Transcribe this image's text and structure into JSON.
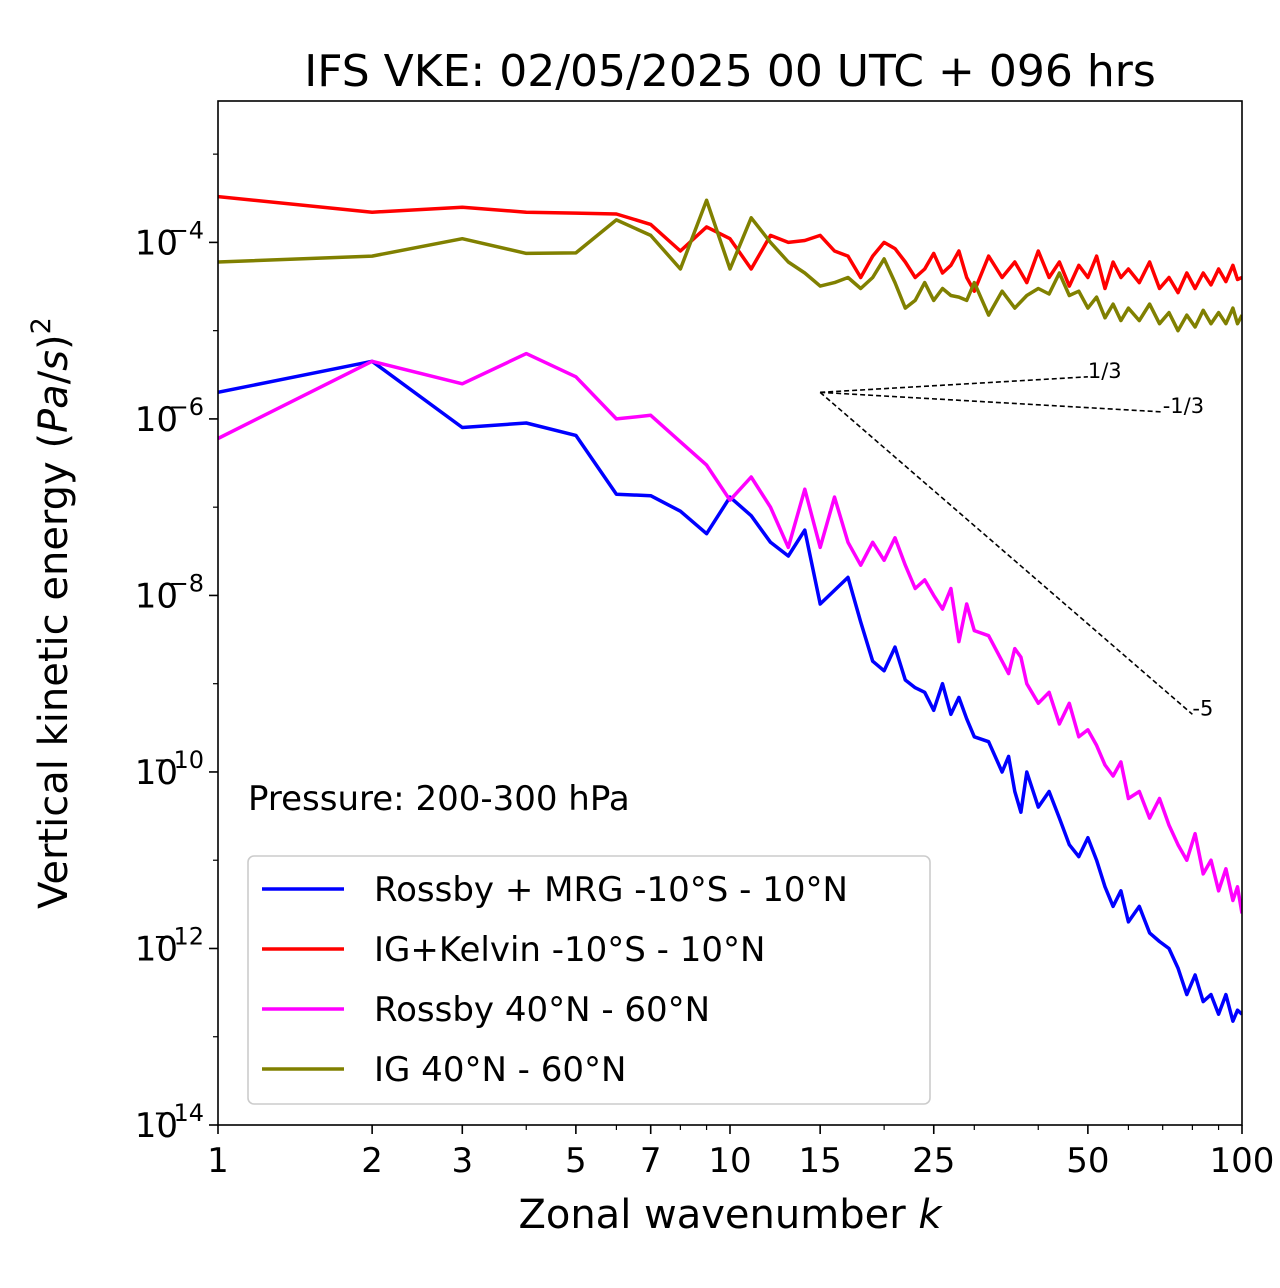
{
  "chart_data": {
    "type": "line",
    "title": "IFS VKE: 02/05/2025 00 UTC + 096 hrs",
    "xlabel": "Zonal wavenumber k",
    "ylabel": "Vertical kinetic energy (Pa/s)²",
    "xscale": "log",
    "yscale": "log",
    "xlim": [
      1,
      100
    ],
    "ylim": [
      1e-14,
      0.004
    ],
    "xticks": [
      1,
      2,
      3,
      5,
      7,
      10,
      15,
      25,
      50,
      100
    ],
    "xtick_labels": [
      "1",
      "2",
      "3",
      "5",
      "7",
      "10",
      "15",
      "25",
      "50",
      "100"
    ],
    "yticks": [
      {
        "value": 0.0001,
        "base": "10",
        "exp": "−4"
      },
      {
        "value": 1e-06,
        "base": "10",
        "exp": "−6"
      },
      {
        "value": 1e-08,
        "base": "10",
        "exp": "−8"
      },
      {
        "value": 1e-10,
        "base": "10",
        "exp": "−10"
      },
      {
        "value": 1e-12,
        "base": "10",
        "exp": "−12"
      },
      {
        "value": 1e-14,
        "base": "10",
        "exp": "−14"
      }
    ],
    "grid": false,
    "annotation": "Pressure: 200-300 hPa",
    "legend_position": "lower-left",
    "reference_slopes": [
      {
        "label": "1/3",
        "from": [
          15,
          2e-06
        ],
        "to": [
          50,
          3e-06
        ]
      },
      {
        "label": "-1/3",
        "from": [
          15,
          2e-06
        ],
        "to": [
          70,
          1.2e-06
        ]
      },
      {
        "label": "-5",
        "from": [
          15,
          2e-06
        ],
        "to": [
          80,
          4.5e-10
        ]
      }
    ],
    "series": [
      {
        "name": "Rossby + MRG -10°S - 10°N",
        "color": "#0000ff",
        "x": [
          1,
          2,
          3,
          4,
          5,
          6,
          7,
          8,
          9,
          10,
          11,
          12,
          13,
          14,
          15,
          17,
          18,
          19,
          20,
          21,
          22,
          23,
          24,
          25,
          26,
          27,
          28,
          29,
          30,
          32,
          34,
          35,
          36,
          37,
          38,
          40,
          42,
          44,
          46,
          48,
          50,
          52,
          54,
          56,
          58,
          60,
          63,
          66,
          69,
          72,
          75,
          78,
          81,
          84,
          87,
          90,
          93,
          96,
          98,
          100
        ],
        "y": [
          2e-06,
          4.5e-06,
          8e-07,
          9e-07,
          6.5e-07,
          1.4e-07,
          1.35e-07,
          9e-08,
          5e-08,
          1.3e-07,
          8e-08,
          4e-08,
          2.8e-08,
          5.5e-08,
          8e-09,
          1.6e-08,
          5e-09,
          1.8e-09,
          1.4e-09,
          2.6e-09,
          1.1e-09,
          9e-10,
          8e-10,
          5e-10,
          1e-09,
          4.5e-10,
          7e-10,
          4e-10,
          2.5e-10,
          2.2e-10,
          1e-10,
          1.5e-10,
          6e-11,
          3.5e-11,
          1e-10,
          4e-11,
          6e-11,
          3e-11,
          1.5e-11,
          1.1e-11,
          1.8e-11,
          1e-11,
          5e-12,
          3e-12,
          4.5e-12,
          2e-12,
          3e-12,
          1.5e-12,
          1.2e-12,
          1e-12,
          6e-13,
          3e-13,
          5e-13,
          2.5e-13,
          3e-13,
          1.8e-13,
          3e-13,
          1.5e-13,
          2e-13,
          1.8e-13
        ]
      },
      {
        "name": "IG+Kelvin -10°S - 10°N",
        "color": "#ff0000",
        "x": [
          1,
          2,
          3,
          4,
          5,
          6,
          7,
          8,
          9,
          10,
          11,
          12,
          13,
          14,
          15,
          16,
          17,
          18,
          19,
          20,
          21,
          22,
          23,
          24,
          25,
          26,
          27,
          28,
          29,
          30,
          32,
          34,
          36,
          38,
          40,
          42,
          44,
          46,
          48,
          50,
          52,
          54,
          56,
          58,
          60,
          63,
          66,
          69,
          72,
          75,
          78,
          81,
          84,
          87,
          90,
          93,
          96,
          98,
          100
        ],
        "y": [
          0.00033,
          0.00022,
          0.00025,
          0.00022,
          0.000215,
          0.00021,
          0.00016,
          8e-05,
          0.00015,
          0.00011,
          5e-05,
          0.00012,
          0.0001,
          0.000105,
          0.00012,
          8e-05,
          7e-05,
          4e-05,
          7e-05,
          0.0001,
          8.5e-05,
          6e-05,
          4e-05,
          5e-05,
          7.5e-05,
          4.5e-05,
          5.5e-05,
          8e-05,
          4e-05,
          2.8e-05,
          7e-05,
          4e-05,
          6e-05,
          3.5e-05,
          8e-05,
          4e-05,
          6e-05,
          3.2e-05,
          5.5e-05,
          4e-05,
          7e-05,
          3e-05,
          6e-05,
          4e-05,
          5e-05,
          3.5e-05,
          6e-05,
          3e-05,
          4e-05,
          2.7e-05,
          4.5e-05,
          3e-05,
          4.5e-05,
          3.3e-05,
          5e-05,
          3.6e-05,
          5.5e-05,
          3.8e-05,
          4e-05
        ]
      },
      {
        "name": "Rossby 40°N - 60°N",
        "color": "#ff00ff",
        "x": [
          1,
          2,
          3,
          4,
          5,
          6,
          7,
          8,
          9,
          10,
          11,
          12,
          13,
          14,
          15,
          16,
          17,
          18,
          19,
          20,
          21,
          22,
          23,
          24,
          25,
          26,
          27,
          28,
          29,
          30,
          32,
          34,
          35,
          36,
          37,
          38,
          40,
          42,
          44,
          46,
          48,
          50,
          52,
          54,
          56,
          58,
          60,
          63,
          66,
          69,
          72,
          75,
          78,
          81,
          84,
          87,
          90,
          93,
          96,
          98,
          100
        ],
        "y": [
          6e-07,
          4.5e-06,
          2.5e-06,
          5.5e-06,
          3e-06,
          1e-06,
          1.1e-06,
          5.5e-07,
          3e-07,
          1.2e-07,
          2.2e-07,
          1e-07,
          3.5e-08,
          1.6e-07,
          3.5e-08,
          1.3e-07,
          4e-08,
          2.2e-08,
          4e-08,
          2.5e-08,
          4.5e-08,
          2.2e-08,
          1.2e-08,
          1.5e-08,
          1e-08,
          7e-09,
          1.2e-08,
          3e-09,
          8e-09,
          4e-09,
          3.5e-09,
          1.8e-09,
          1.3e-09,
          2.5e-09,
          2e-09,
          1e-09,
          6e-10,
          8e-10,
          3.5e-10,
          6e-10,
          2.5e-10,
          3e-10,
          2e-10,
          1.2e-10,
          9e-11,
          1.3e-10,
          5e-11,
          6e-11,
          3e-11,
          5e-11,
          2.5e-11,
          1.5e-11,
          1e-11,
          2e-11,
          7e-12,
          1e-11,
          4.5e-12,
          8e-12,
          3.5e-12,
          5e-12,
          2.5e-12
        ]
      },
      {
        "name": "IG 40°N - 60°N",
        "color": "#808000",
        "x": [
          1,
          2,
          3,
          4,
          5,
          6,
          7,
          8,
          9,
          10,
          11,
          12,
          13,
          14,
          15,
          16,
          17,
          18,
          19,
          20,
          21,
          22,
          23,
          24,
          25,
          26,
          27,
          28,
          29,
          30,
          32,
          34,
          36,
          38,
          40,
          42,
          44,
          46,
          48,
          50,
          52,
          54,
          56,
          58,
          60,
          63,
          66,
          69,
          72,
          75,
          78,
          81,
          84,
          87,
          90,
          93,
          96,
          98,
          100
        ],
        "y": [
          6e-05,
          7e-05,
          0.00011,
          7.5e-05,
          7.6e-05,
          0.00018,
          0.00012,
          5e-05,
          0.0003,
          5e-05,
          0.00019,
          0.0001,
          6e-05,
          4.5e-05,
          3.2e-05,
          3.5e-05,
          4e-05,
          3e-05,
          4e-05,
          6.5e-05,
          3.5e-05,
          1.8e-05,
          2.2e-05,
          3.5e-05,
          2.2e-05,
          3e-05,
          2.5e-05,
          2.4e-05,
          2.2e-05,
          3.5e-05,
          1.5e-05,
          2.8e-05,
          1.8e-05,
          2.5e-05,
          3e-05,
          2.6e-05,
          4.5e-05,
          2.5e-05,
          2.8e-05,
          1.8e-05,
          2.4e-05,
          1.4e-05,
          2e-05,
          1.3e-05,
          1.8e-05,
          1.3e-05,
          2e-05,
          1.2e-05,
          1.6e-05,
          1e-05,
          1.5e-05,
          1.1e-05,
          1.7e-05,
          1.2e-05,
          1.6e-05,
          1.2e-05,
          1.8e-05,
          1.2e-05,
          1.5e-05
        ]
      }
    ]
  }
}
